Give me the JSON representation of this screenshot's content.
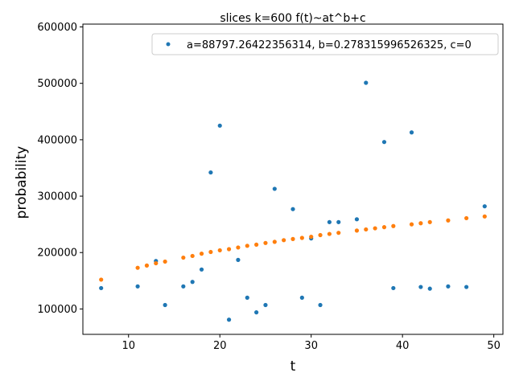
{
  "chart_data": {
    "type": "scatter",
    "title": "slices k=600 f(t)~at^b+c",
    "xlabel": "t",
    "ylabel": "probability",
    "xlim": [
      5.0,
      51.0
    ],
    "ylim": [
      55000,
      605000
    ],
    "xticks": [
      10,
      20,
      30,
      40,
      50
    ],
    "yticks": [
      100000,
      200000,
      300000,
      400000,
      500000,
      600000
    ],
    "grid": false,
    "legend_location": "upper right",
    "series": [
      {
        "name": "a=88797.26422356314, b=0.278315996526325, c=0",
        "color": "#1f77b4",
        "in_legend": true,
        "x": [
          7,
          11,
          13,
          14,
          16,
          17,
          18,
          19,
          20,
          21,
          22,
          23,
          24,
          25,
          26,
          28,
          29,
          30,
          31,
          32,
          33,
          35,
          36,
          38,
          39,
          41,
          42,
          43,
          45,
          47,
          49
        ],
        "y": [
          137000,
          140000,
          185000,
          107000,
          140000,
          148000,
          170000,
          342000,
          425000,
          81000,
          187000,
          120000,
          94000,
          107000,
          313000,
          277000,
          120000,
          225000,
          107000,
          254000,
          254000,
          259000,
          501000,
          396000,
          137000,
          413000,
          139000,
          136000,
          140000,
          139000,
          282000
        ]
      },
      {
        "color": "#ff7f0e",
        "in_legend": false,
        "x": [
          7,
          11,
          12,
          13,
          14,
          16,
          17,
          18,
          19,
          20,
          21,
          22,
          23,
          24,
          25,
          26,
          27,
          28,
          29,
          30,
          31,
          32,
          33,
          35,
          36,
          37,
          38,
          39,
          41,
          42,
          43,
          45,
          47,
          49
        ],
        "y": [
          152000,
          173000,
          177000,
          181000,
          184000,
          191000,
          194000,
          198000,
          201000,
          204000,
          206000,
          209000,
          212000,
          214000,
          217000,
          219000,
          222000,
          224000,
          226000,
          228000,
          231000,
          233000,
          235000,
          239000,
          241000,
          243000,
          245000,
          247000,
          250000,
          252000,
          254000,
          257000,
          261000,
          264000
        ]
      }
    ]
  }
}
